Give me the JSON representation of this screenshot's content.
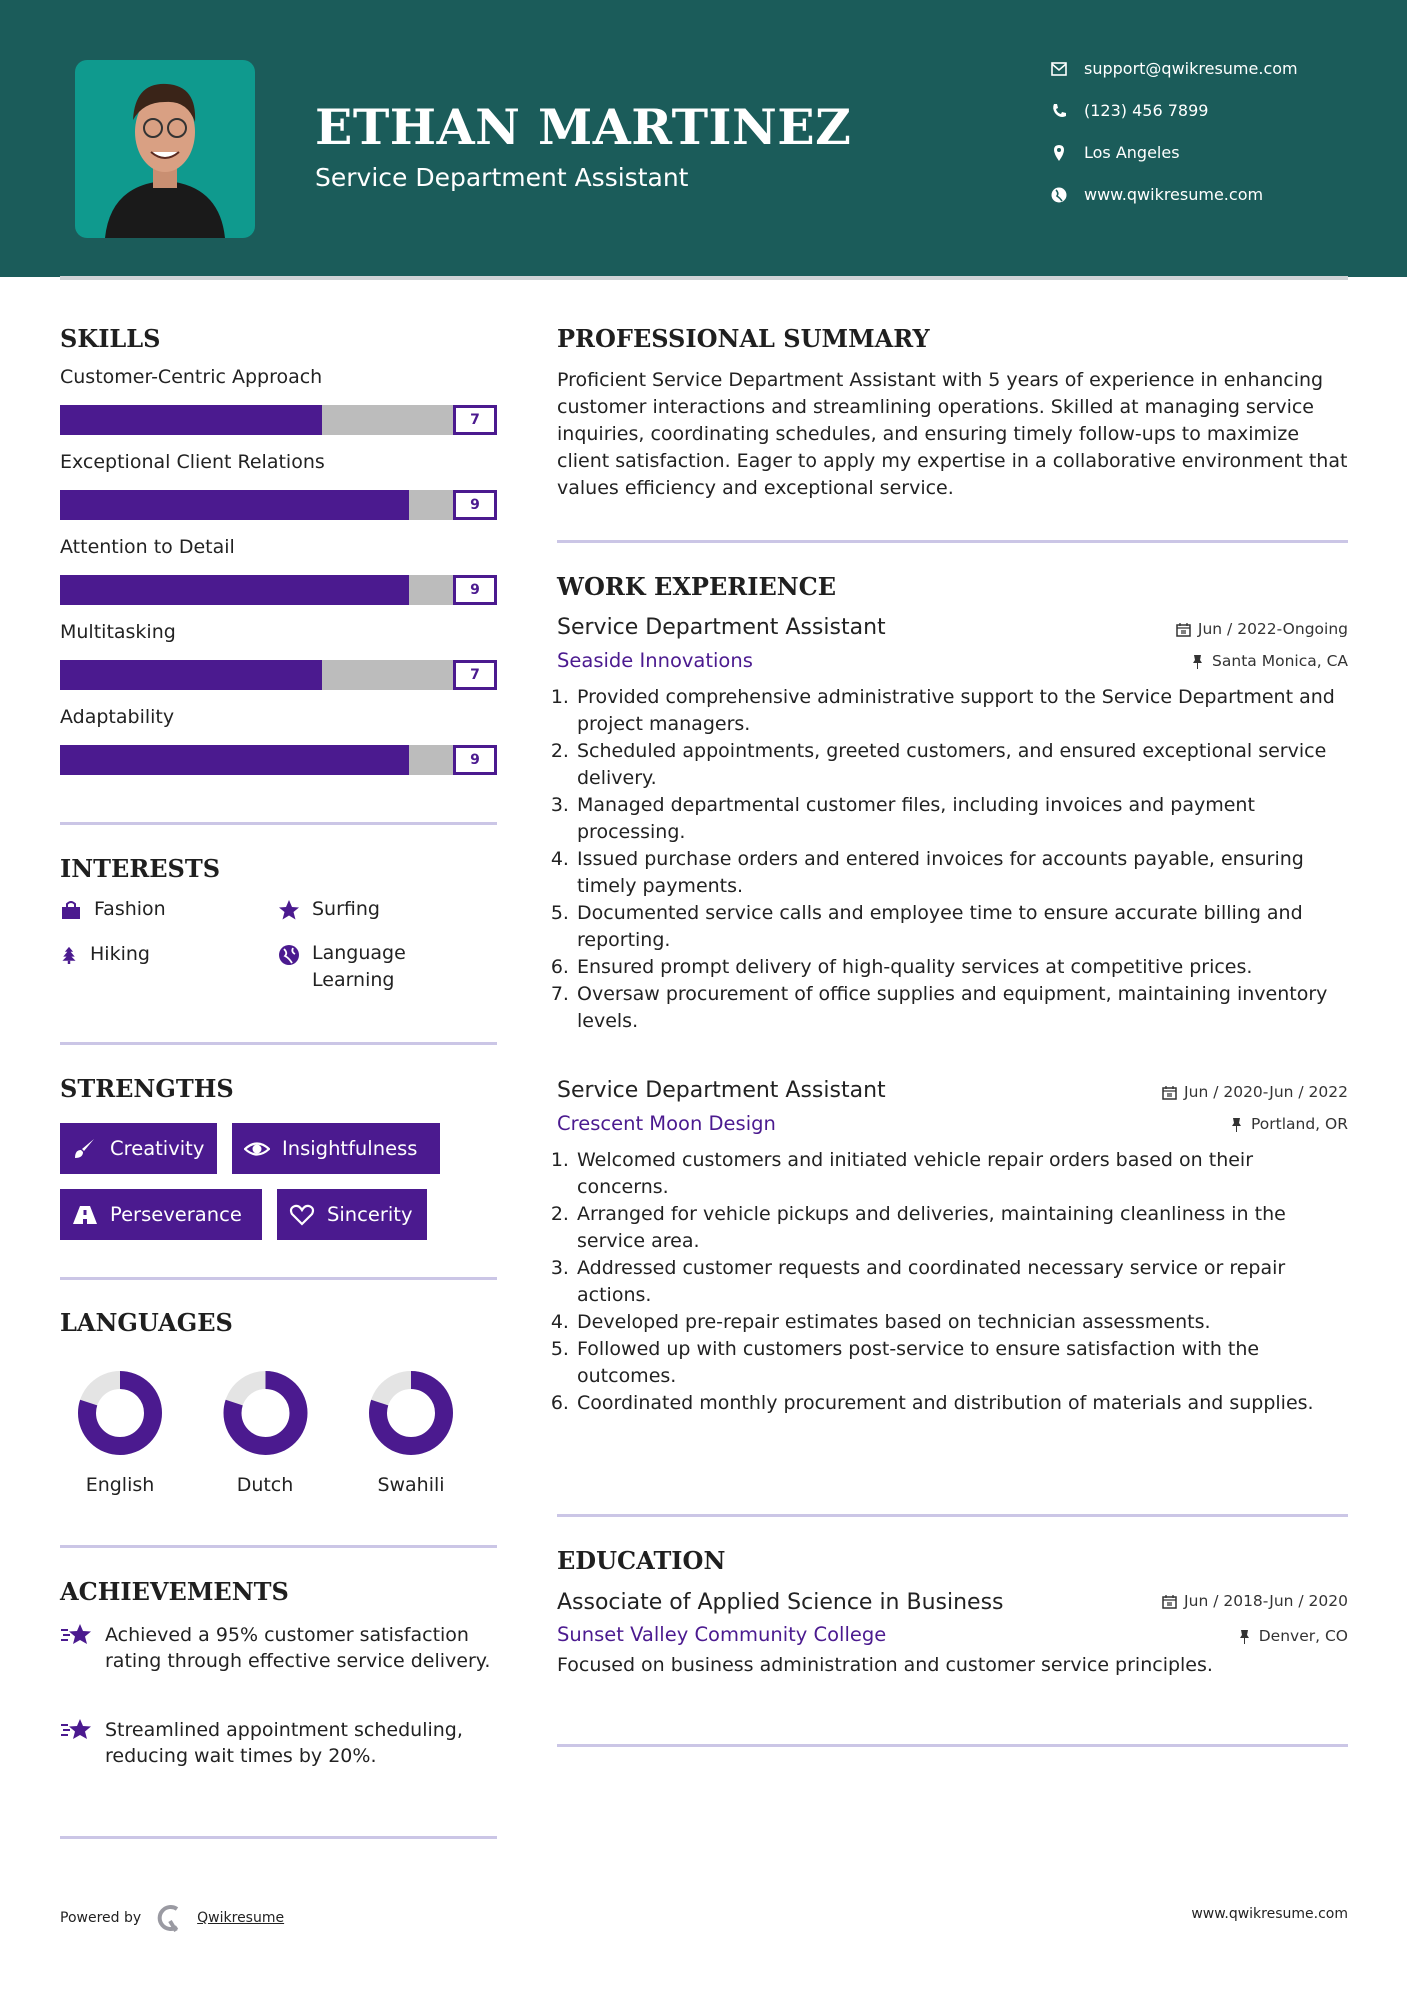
{
  "header": {
    "name": "ETHAN MARTINEZ",
    "title": "Service Department Assistant",
    "contacts": [
      {
        "icon": "envelope-icon",
        "text": "support@qwikresume.com"
      },
      {
        "icon": "phone-icon",
        "text": "(123) 456 7899"
      },
      {
        "icon": "map-marker-icon",
        "text": "Los Angeles"
      },
      {
        "icon": "globe-icon",
        "text": "www.qwikresume.com"
      }
    ]
  },
  "colors": {
    "header_bg": "#1b5c5a",
    "photo_bg": "#0f9a8e",
    "accent": "#4b1a8f",
    "track": "#bcbcbc",
    "divider": "#cbc6e6"
  },
  "skills": {
    "heading": "SKILLS",
    "max": 10,
    "items": [
      {
        "label": "Customer-Centric Approach",
        "value": 7
      },
      {
        "label": "Exceptional Client Relations",
        "value": 9
      },
      {
        "label": "Attention to Detail",
        "value": 9
      },
      {
        "label": "Multitasking",
        "value": 7
      },
      {
        "label": "Adaptability",
        "value": 9
      }
    ]
  },
  "interests": {
    "heading": "INTERESTS",
    "items": [
      {
        "icon": "shopping-bag-icon",
        "label": "Fashion"
      },
      {
        "icon": "star-icon",
        "label": "Surfing"
      },
      {
        "icon": "tree-icon",
        "label": "Hiking"
      },
      {
        "icon": "globe-icon",
        "label": "Language Learning"
      }
    ]
  },
  "strengths": {
    "heading": "STRENGTHS",
    "items": [
      {
        "icon": "paintbrush-icon",
        "label": "Creativity"
      },
      {
        "icon": "eye-icon",
        "label": "Insightfulness"
      },
      {
        "icon": "road-icon",
        "label": "Perseverance"
      },
      {
        "icon": "heart-icon",
        "label": "Sincerity"
      }
    ]
  },
  "languages": {
    "heading": "LANGUAGES",
    "items": [
      {
        "label": "English",
        "level": 0.8
      },
      {
        "label": "Dutch",
        "level": 0.8
      },
      {
        "label": "Swahili",
        "level": 0.8
      }
    ]
  },
  "achievements": {
    "heading": "ACHIEVEMENTS",
    "items": [
      "Achieved a 95% customer satisfaction rating through effective service delivery.",
      "Streamlined appointment scheduling, reducing wait times by 20%."
    ]
  },
  "summary": {
    "heading": "PROFESSIONAL SUMMARY",
    "text": "Proficient Service Department Assistant with 5 years of experience in enhancing customer interactions and streamlining operations. Skilled at managing service inquiries, coordinating schedules, and ensuring timely follow-ups to maximize client satisfaction. Eager to apply my expertise in a collaborative environment that values efficiency and exceptional service."
  },
  "experience": {
    "heading": "WORK EXPERIENCE",
    "jobs": [
      {
        "title": "Service Department Assistant",
        "company": "Seaside Innovations",
        "date": "Jun / 2022-Ongoing",
        "location": "Santa Monica, CA",
        "duties": [
          "Provided comprehensive administrative support to the Service Department and project managers.",
          "Scheduled appointments, greeted customers, and ensured exceptional service delivery.",
          "Managed departmental customer files, including invoices and payment processing.",
          "Issued purchase orders and entered invoices for accounts payable, ensuring timely payments.",
          "Documented service calls and employee time to ensure accurate billing and reporting.",
          "Ensured prompt delivery of high-quality services at competitive prices.",
          "Oversaw procurement of office supplies and equipment, maintaining inventory levels."
        ]
      },
      {
        "title": "Service Department Assistant",
        "company": "Crescent Moon Design",
        "date": "Jun / 2020-Jun / 2022",
        "location": "Portland, OR",
        "duties": [
          "Welcomed customers and initiated vehicle repair orders based on their concerns.",
          "Arranged for vehicle pickups and deliveries, maintaining cleanliness in the service area.",
          "Addressed customer requests and coordinated necessary service or repair actions.",
          "Developed pre-repair estimates based on technician assessments.",
          "Followed up with customers post-service to ensure satisfaction with the outcomes.",
          "Coordinated monthly procurement and distribution of materials and supplies."
        ]
      }
    ]
  },
  "education": {
    "heading": "EDUCATION",
    "degree": "Associate of Applied Science in Business",
    "school": "Sunset Valley Community College",
    "date": "Jun / 2018-Jun / 2020",
    "location": "Denver, CO",
    "description": "Focused on business administration and customer service principles."
  },
  "footer": {
    "powered_by": "Powered by",
    "brand": "Qwikresume",
    "website": "www.qwikresume.com"
  }
}
